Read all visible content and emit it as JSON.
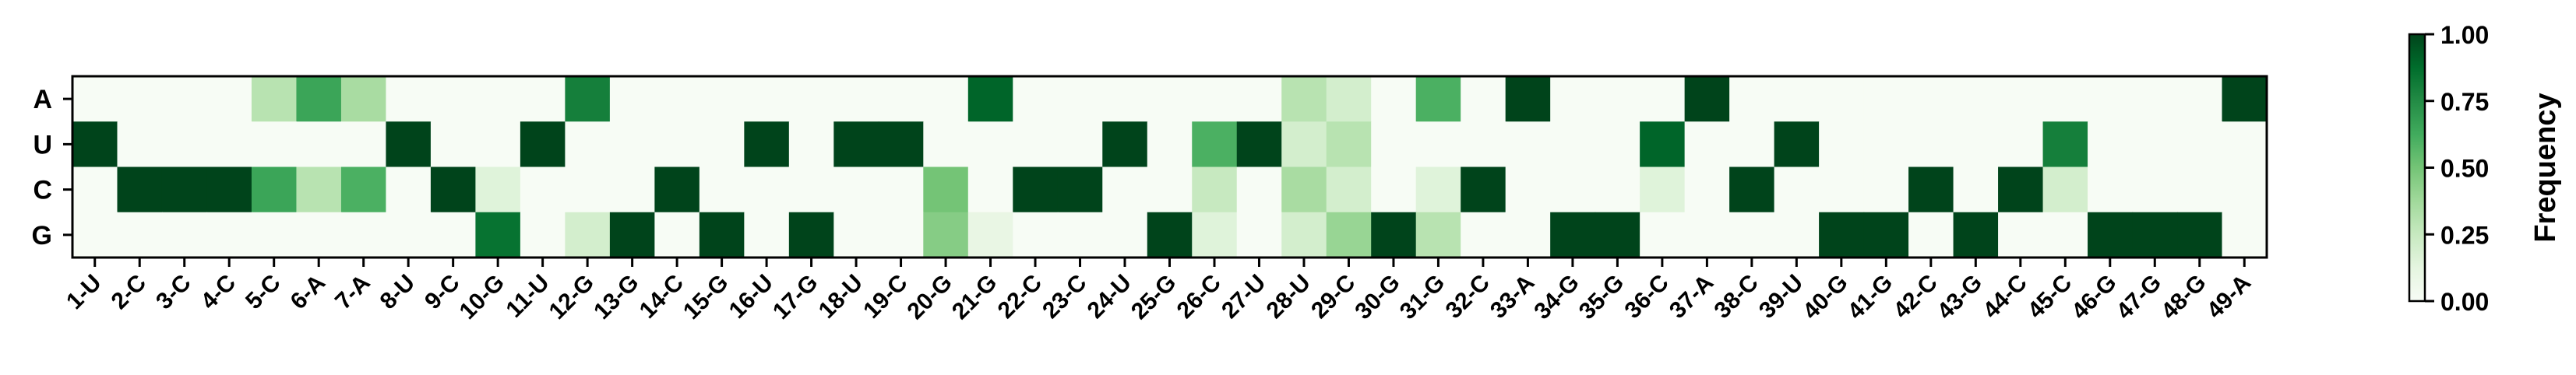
{
  "chart_data": {
    "type": "heatmap",
    "x": [
      "1-U",
      "2-C",
      "3-C",
      "4-C",
      "5-C",
      "6-A",
      "7-A",
      "8-U",
      "9-C",
      "10-G",
      "11-U",
      "12-G",
      "13-G",
      "14-C",
      "15-G",
      "16-U",
      "17-G",
      "18-U",
      "19-C",
      "20-G",
      "21-G",
      "22-C",
      "23-C",
      "24-U",
      "25-G",
      "26-C",
      "27-U",
      "28-U",
      "29-C",
      "30-G",
      "31-G",
      "32-C",
      "33-A",
      "34-G",
      "35-G",
      "36-C",
      "37-A",
      "38-C",
      "39-U",
      "40-G",
      "41-G",
      "42-C",
      "43-G",
      "44-C",
      "45-C",
      "46-G",
      "47-G",
      "48-G",
      "49-A"
    ],
    "y": [
      "A",
      "U",
      "C",
      "G"
    ],
    "values": [
      [
        0,
        0,
        0,
        0,
        0.3,
        0.65,
        0.35,
        0,
        0,
        0,
        0,
        0.8,
        0,
        0,
        0,
        0,
        0,
        0,
        0,
        0,
        0.9,
        0,
        0,
        0,
        0,
        0,
        0,
        0.3,
        0.2,
        0,
        0.6,
        0,
        1,
        0,
        0,
        0,
        1,
        0,
        0,
        0,
        0,
        0,
        0,
        0,
        0,
        0,
        0,
        0,
        1
      ],
      [
        1,
        0,
        0,
        0,
        0,
        0,
        0,
        1,
        0,
        0,
        1,
        0,
        0,
        0,
        0,
        1,
        0,
        1,
        1,
        0,
        0,
        0,
        0,
        1,
        0,
        0.6,
        1,
        0.2,
        0.3,
        0,
        0,
        0,
        0,
        0,
        0,
        0.9,
        0,
        0,
        1,
        0,
        0,
        0,
        0,
        0,
        0.8,
        0,
        0,
        0,
        0
      ],
      [
        0,
        1,
        1,
        1,
        0.65,
        0.3,
        0.6,
        0,
        1,
        0.15,
        0,
        0,
        0,
        1,
        0,
        0,
        0,
        0,
        0,
        0.5,
        0,
        1,
        1,
        0,
        0,
        0.25,
        0,
        0.35,
        0.2,
        0,
        0.15,
        1,
        0,
        0,
        0,
        0.15,
        0,
        1,
        0,
        0,
        0,
        1,
        0,
        1,
        0.2,
        0,
        0,
        0,
        0
      ],
      [
        0,
        0,
        0,
        0,
        0,
        0,
        0,
        0,
        0,
        0.85,
        0,
        0.2,
        1,
        0,
        1,
        0,
        1,
        0,
        0,
        0.45,
        0.1,
        0,
        0,
        0,
        1,
        0.15,
        0,
        0.2,
        0.4,
        1,
        0.3,
        0,
        0,
        1,
        1,
        0,
        0,
        0,
        0,
        1,
        1,
        0,
        1,
        0,
        0,
        1,
        1,
        1,
        0
      ]
    ],
    "colorbar": {
      "label": "Frequency",
      "range": [
        0,
        1
      ],
      "ticks": [
        "0.00",
        "0.25",
        "0.50",
        "0.75",
        "1.00"
      ]
    },
    "colorscale": [
      "#f7fcf5",
      "#e5f5e0",
      "#c7e9c0",
      "#a1d99b",
      "#74c476",
      "#41ab5d",
      "#238b45",
      "#006d2c",
      "#00441b"
    ],
    "title": "",
    "xlabel": "",
    "ylabel": "",
    "grid": false
  }
}
